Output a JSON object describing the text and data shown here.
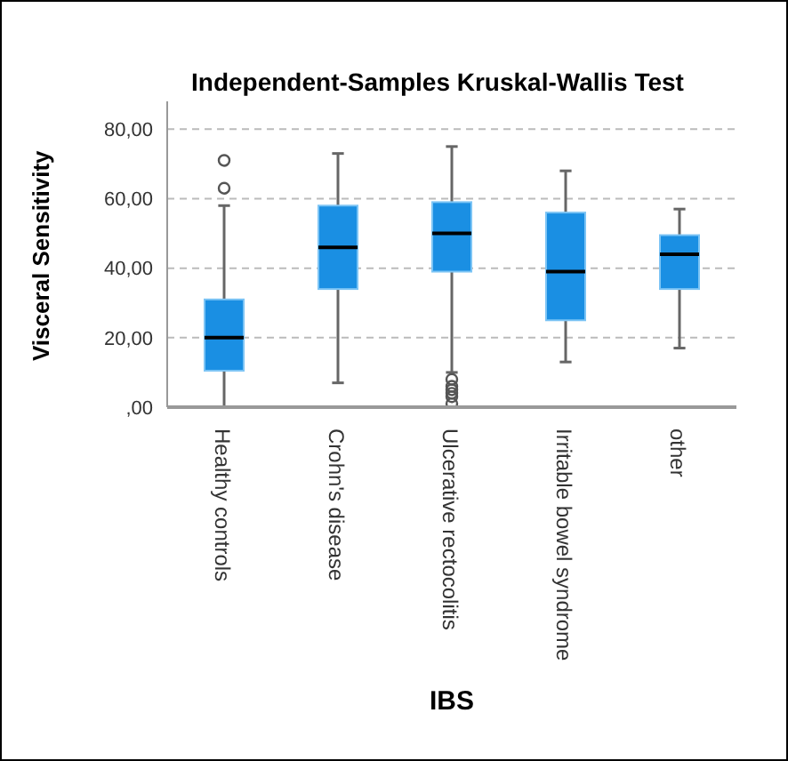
{
  "chart_data": {
    "type": "box",
    "title": "Independent-Samples Kruskal-Wallis Test",
    "xlabel": "IBS",
    "ylabel": "Visceral Sensitivity",
    "categories": [
      "Healthy controls",
      "Crohn's disease",
      "Ulcerative rectocolitis",
      "Irritable bowel syndrome",
      "other"
    ],
    "boxes": [
      {
        "low": 0,
        "q1": 10.5,
        "median": 20,
        "q3": 31,
        "high": 58,
        "outliers": [
          63,
          71
        ]
      },
      {
        "low": 7,
        "q1": 34,
        "median": 46,
        "q3": 58,
        "high": 73
      },
      {
        "low": 10,
        "q1": 39,
        "median": 50,
        "q3": 59,
        "high": 75,
        "outliers": [
          8,
          6,
          5,
          4,
          3,
          1
        ]
      },
      {
        "low": 13,
        "q1": 25,
        "median": 39,
        "q3": 56,
        "high": 68
      },
      {
        "low": 17,
        "q1": 34,
        "median": 44,
        "q3": 49.5,
        "high": 57
      }
    ],
    "color": "#1a8fe3",
    "ylim": [
      0,
      88
    ],
    "yticks": [
      {
        "value": 0,
        "label": ",00"
      },
      {
        "value": 20,
        "label": "20,00"
      },
      {
        "value": 40,
        "label": "40,00"
      },
      {
        "value": 60,
        "label": "60,00"
      },
      {
        "value": 80,
        "label": "80,00"
      }
    ],
    "grid": "y",
    "legend": false
  }
}
